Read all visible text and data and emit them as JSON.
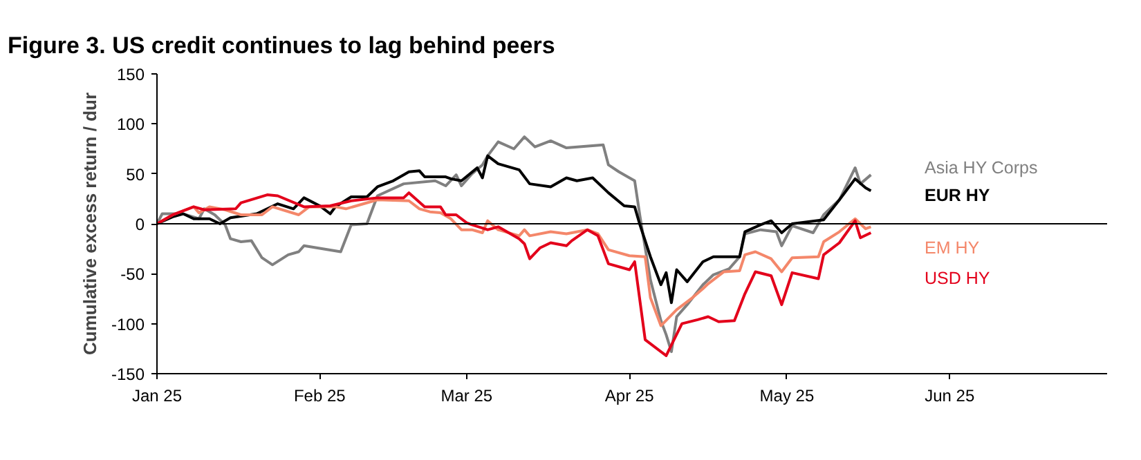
{
  "chart_data": {
    "type": "line",
    "title": "Figure 3. US credit continues to lag behind peers",
    "ylabel": "Cumulative excess return / dur",
    "xlim": [
      "2025-01-01",
      "2025-07-01"
    ],
    "xticks": [
      {
        "value": "2025-01-01",
        "label": "Jan 25"
      },
      {
        "value": "2025-02-01",
        "label": "Feb 25"
      },
      {
        "value": "2025-03-01",
        "label": "Mar 25"
      },
      {
        "value": "2025-04-01",
        "label": "Apr 25"
      },
      {
        "value": "2025-05-01",
        "label": "May 25"
      },
      {
        "value": "2025-06-01",
        "label": "Jun 25"
      }
    ],
    "ylim": [
      -150,
      150
    ],
    "yticks": [
      -150,
      -100,
      -50,
      0,
      50,
      100,
      150
    ],
    "grid": false,
    "legend": "right",
    "line_style": "solid",
    "marker": "none",
    "ref_lines": [
      {
        "axis": "y",
        "value": 0,
        "color": "#000000"
      }
    ],
    "series": [
      {
        "name": "Asia HY Corps",
        "color": "#808080",
        "x": [
          "2025-01-01",
          "2025-01-02",
          "2025-01-06",
          "2025-01-09",
          "2025-01-10",
          "2025-01-12",
          "2025-01-14",
          "2025-01-15",
          "2025-01-17",
          "2025-01-19",
          "2025-01-21",
          "2025-01-23",
          "2025-01-26",
          "2025-01-28",
          "2025-01-29",
          "2025-02-05",
          "2025-02-07",
          "2025-02-10",
          "2025-02-12",
          "2025-02-17",
          "2025-02-23",
          "2025-02-25",
          "2025-02-27",
          "2025-02-28",
          "2025-03-02",
          "2025-03-04",
          "2025-03-05",
          "2025-03-07",
          "2025-03-10",
          "2025-03-12",
          "2025-03-14",
          "2025-03-17",
          "2025-03-20",
          "2025-03-27",
          "2025-03-28",
          "2025-03-30",
          "2025-04-02",
          "2025-04-03",
          "2025-04-05",
          "2025-04-07",
          "2025-04-08",
          "2025-04-09",
          "2025-04-10",
          "2025-04-12",
          "2025-04-15",
          "2025-04-17",
          "2025-04-20",
          "2025-04-22",
          "2025-04-23",
          "2025-04-26",
          "2025-04-29",
          "2025-04-30",
          "2025-05-02",
          "2025-05-06",
          "2025-05-08",
          "2025-05-11",
          "2025-05-14",
          "2025-05-15",
          "2025-05-17"
        ],
        "values": [
          0,
          10,
          10,
          5,
          15,
          9,
          -1,
          -15,
          -18,
          -17,
          -34,
          -41,
          -31,
          -28,
          -22,
          -28,
          -1,
          0,
          28,
          40,
          43,
          38,
          49,
          38,
          50,
          59,
          68,
          82,
          75,
          87,
          77,
          83,
          76,
          79,
          59,
          52,
          43,
          8,
          -56,
          -97,
          -111,
          -128,
          -93,
          -81,
          -61,
          -51,
          -45,
          -33,
          -10,
          -6,
          -8,
          -22,
          -2,
          -9,
          9,
          24,
          56,
          40,
          49
        ]
      },
      {
        "name": "EUR HY",
        "color": "#000000",
        "x": [
          "2025-01-01",
          "2025-01-04",
          "2025-01-06",
          "2025-01-08",
          "2025-01-11",
          "2025-01-13",
          "2025-01-15",
          "2025-01-20",
          "2025-01-24",
          "2025-01-27",
          "2025-01-29",
          "2025-02-01",
          "2025-02-03",
          "2025-02-04",
          "2025-02-07",
          "2025-02-10",
          "2025-02-12",
          "2025-02-15",
          "2025-02-18",
          "2025-02-20",
          "2025-02-21",
          "2025-02-25",
          "2025-02-26",
          "2025-02-28",
          "2025-03-03",
          "2025-03-04",
          "2025-03-05",
          "2025-03-07",
          "2025-03-11",
          "2025-03-13",
          "2025-03-17",
          "2025-03-20",
          "2025-03-22",
          "2025-03-25",
          "2025-03-28",
          "2025-03-31",
          "2025-04-02",
          "2025-04-03",
          "2025-04-05",
          "2025-04-07",
          "2025-04-08",
          "2025-04-09",
          "2025-04-10",
          "2025-04-12",
          "2025-04-15",
          "2025-04-17",
          "2025-04-22",
          "2025-04-23",
          "2025-04-26",
          "2025-04-28",
          "2025-04-30",
          "2025-05-02",
          "2025-05-08",
          "2025-05-11",
          "2025-05-14",
          "2025-05-16",
          "2025-05-17"
        ],
        "values": [
          0,
          7,
          10,
          5,
          5,
          0,
          6,
          10,
          20,
          15,
          26,
          18,
          10,
          17,
          27,
          27,
          37,
          43,
          52,
          53,
          47,
          47,
          45,
          43,
          56,
          46,
          68,
          60,
          54,
          40,
          37,
          46,
          43,
          46,
          31,
          18,
          17,
          -1,
          -33,
          -61,
          -49,
          -79,
          -46,
          -58,
          -38,
          -33,
          -33,
          -8,
          -1,
          3,
          -9,
          0,
          4,
          24,
          45,
          36,
          33
        ]
      },
      {
        "name": "EM HY",
        "color": "#f4876a",
        "x": [
          "2025-01-01",
          "2025-01-04",
          "2025-01-08",
          "2025-01-09",
          "2025-01-11",
          "2025-01-14",
          "2025-01-17",
          "2025-01-21",
          "2025-01-23",
          "2025-01-28",
          "2025-01-30",
          "2025-02-04",
          "2025-02-06",
          "2025-02-08",
          "2025-02-12",
          "2025-02-18",
          "2025-02-20",
          "2025-02-22",
          "2025-02-24",
          "2025-02-26",
          "2025-02-28",
          "2025-03-02",
          "2025-03-04",
          "2025-03-05",
          "2025-03-07",
          "2025-03-11",
          "2025-03-12",
          "2025-03-13",
          "2025-03-17",
          "2025-03-20",
          "2025-03-24",
          "2025-03-26",
          "2025-03-28",
          "2025-04-01",
          "2025-04-04",
          "2025-04-05",
          "2025-04-07",
          "2025-04-10",
          "2025-04-13",
          "2025-04-15",
          "2025-04-16",
          "2025-04-19",
          "2025-04-22",
          "2025-04-23",
          "2025-04-25",
          "2025-04-28",
          "2025-04-30",
          "2025-05-02",
          "2025-05-07",
          "2025-05-08",
          "2025-05-11",
          "2025-05-14",
          "2025-05-16",
          "2025-05-17"
        ],
        "values": [
          0,
          9,
          17,
          11,
          17,
          14,
          9,
          9,
          17,
          9,
          17,
          17,
          15,
          18,
          24,
          23,
          15,
          12,
          11,
          5,
          -6,
          -6,
          -9,
          3,
          -6,
          -12,
          -6,
          -12,
          -8,
          -10,
          -6,
          -10,
          -26,
          -32,
          -33,
          -74,
          -102,
          -86,
          -74,
          -65,
          -60,
          -48,
          -47,
          -31,
          -28,
          -35,
          -48,
          -34,
          -33,
          -18,
          -8,
          5,
          -5,
          -3
        ]
      },
      {
        "name": "USD HY",
        "color": "#e3001b",
        "x": [
          "2025-01-01",
          "2025-01-04",
          "2025-01-08",
          "2025-01-10",
          "2025-01-16",
          "2025-01-17",
          "2025-01-22",
          "2025-01-24",
          "2025-01-29",
          "2025-02-03",
          "2025-02-07",
          "2025-02-12",
          "2025-02-17",
          "2025-02-18",
          "2025-02-21",
          "2025-02-24",
          "2025-02-25",
          "2025-02-27",
          "2025-03-01",
          "2025-03-02",
          "2025-03-05",
          "2025-03-07",
          "2025-03-11",
          "2025-03-12",
          "2025-03-13",
          "2025-03-15",
          "2025-03-17",
          "2025-03-20",
          "2025-03-21",
          "2025-03-24",
          "2025-03-26",
          "2025-03-28",
          "2025-04-01",
          "2025-04-02",
          "2025-04-04",
          "2025-04-08",
          "2025-04-11",
          "2025-04-14",
          "2025-04-16",
          "2025-04-18",
          "2025-04-21",
          "2025-04-23",
          "2025-04-25",
          "2025-04-28",
          "2025-04-30",
          "2025-05-02",
          "2025-05-07",
          "2025-05-08",
          "2025-05-11",
          "2025-05-14",
          "2025-05-15",
          "2025-05-17"
        ],
        "values": [
          0,
          9,
          17,
          14,
          15,
          21,
          29,
          28,
          17,
          18,
          23,
          26,
          26,
          31,
          17,
          17,
          9,
          9,
          1,
          -1,
          -6,
          -3,
          -15,
          -20,
          -35,
          -24,
          -19,
          -22,
          -17,
          -6,
          -12,
          -40,
          -46,
          -38,
          -116,
          -132,
          -100,
          -96,
          -93,
          -98,
          -97,
          -70,
          -48,
          -52,
          -81,
          -49,
          -55,
          -31,
          -19,
          3,
          -14,
          -9
        ]
      }
    ]
  }
}
